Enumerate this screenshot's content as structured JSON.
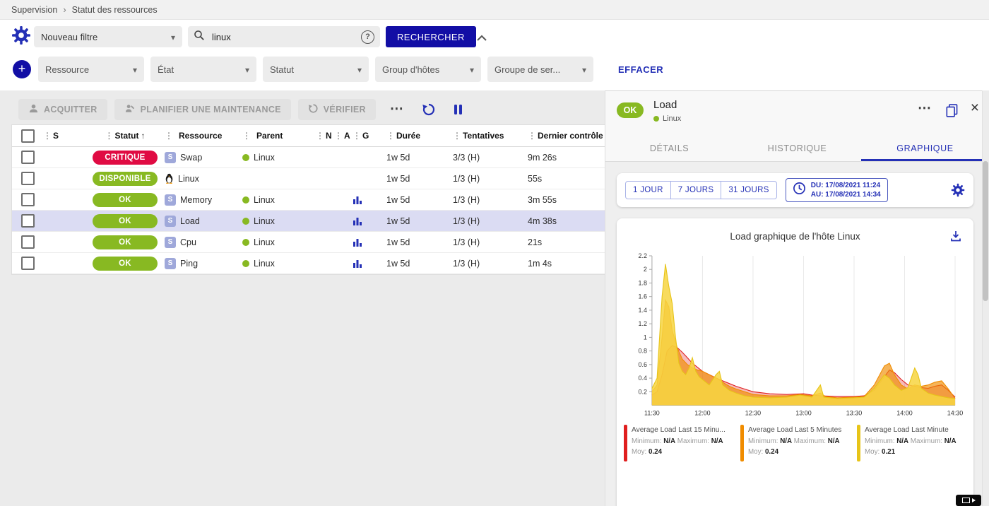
{
  "colors": {
    "primary": "#120ea5",
    "accent": "#2430b6",
    "critical": "#e00b43",
    "success": "#88b922",
    "selected_row": "#dbdcf3"
  },
  "breadcrumb": {
    "items": [
      "Supervision",
      "Statut des ressources"
    ]
  },
  "filters": {
    "saved_filter_value": "Nouveau filtre",
    "search_value": "linux",
    "search_button_label": "RECHERCHER",
    "criteria": [
      "Ressource",
      "État",
      "Statut",
      "Group d'hôtes",
      "Groupe de ser..."
    ],
    "clear_label": "EFFACER"
  },
  "toolbar": {
    "acknowledge_label": "ACQUITTER",
    "maintenance_label": "PLANIFIER UNE MAINTENANCE",
    "check_label": "VÉRIFIER"
  },
  "table": {
    "service_icon_glyph": "S",
    "columns": [
      {
        "key": "s",
        "label": "S"
      },
      {
        "key": "statut",
        "label": "Statut",
        "sorted": "asc"
      },
      {
        "key": "ressource",
        "label": "Ressource"
      },
      {
        "key": "parent",
        "label": "Parent"
      },
      {
        "key": "n",
        "label": "N"
      },
      {
        "key": "a",
        "label": "A"
      },
      {
        "key": "g",
        "label": "G"
      },
      {
        "key": "duree",
        "label": "Durée"
      },
      {
        "key": "tentatives",
        "label": "Tentatives"
      },
      {
        "key": "dernier-controle",
        "label": "Dernier contrôle"
      }
    ],
    "rows": [
      {
        "status": "CRITIQUE",
        "kind": "critical",
        "type": "service",
        "resource": "Swap",
        "parent": "Linux",
        "graph": false,
        "duration": "1w 5d",
        "tries": "3/3 (H)",
        "last_check": "9m 26s",
        "selected": false
      },
      {
        "status": "DISPONIBLE",
        "kind": "success",
        "type": "host",
        "resource": "Linux",
        "parent": "",
        "graph": false,
        "duration": "1w 5d",
        "tries": "1/3 (H)",
        "last_check": "55s",
        "selected": false
      },
      {
        "status": "OK",
        "kind": "success",
        "type": "service",
        "resource": "Memory",
        "parent": "Linux",
        "graph": true,
        "duration": "1w 5d",
        "tries": "1/3 (H)",
        "last_check": "3m 55s",
        "selected": false
      },
      {
        "status": "OK",
        "kind": "success",
        "type": "service",
        "resource": "Load",
        "parent": "Linux",
        "graph": true,
        "duration": "1w 5d",
        "tries": "1/3 (H)",
        "last_check": "4m 38s",
        "selected": true
      },
      {
        "status": "OK",
        "kind": "success",
        "type": "service",
        "resource": "Cpu",
        "parent": "Linux",
        "graph": true,
        "duration": "1w 5d",
        "tries": "1/3 (H)",
        "last_check": "21s",
        "selected": false
      },
      {
        "status": "OK",
        "kind": "success",
        "type": "service",
        "resource": "Ping",
        "parent": "Linux",
        "graph": true,
        "duration": "1w 5d",
        "tries": "1/3 (H)",
        "last_check": "1m 4s",
        "selected": false
      }
    ]
  },
  "panel": {
    "status": "OK",
    "title": "Load",
    "host": "Linux",
    "tabs": [
      {
        "key": "details",
        "label": "DÉTAILS",
        "active": false
      },
      {
        "key": "historique",
        "label": "HISTORIQUE",
        "active": false
      },
      {
        "key": "graphique",
        "label": "GRAPHIQUE",
        "active": true
      }
    ],
    "time_ranges": [
      "1 JOUR",
      "7 JOURS",
      "31 JOURS"
    ],
    "period_from": "DU: 17/08/2021 11:24",
    "period_to": "AU: 17/08/2021 14:34"
  },
  "chart_data": {
    "type": "area",
    "title": "Load graphique de l'hôte Linux",
    "xlabel": "",
    "ylabel": "",
    "x_unit": "minutes after 11:30",
    "xlim": [
      0,
      180
    ],
    "ylim": [
      0,
      2.2
    ],
    "grid": "vertical",
    "legend_position": "bottom",
    "xticks": [
      {
        "v": 0,
        "label": "11:30"
      },
      {
        "v": 30,
        "label": "12:00"
      },
      {
        "v": 60,
        "label": "12:30"
      },
      {
        "v": 90,
        "label": "13:00"
      },
      {
        "v": 120,
        "label": "13:30"
      },
      {
        "v": 150,
        "label": "14:00"
      },
      {
        "v": 180,
        "label": "14:30"
      }
    ],
    "yticks": [
      {
        "v": 0.2,
        "label": "0.2"
      },
      {
        "v": 0.4,
        "label": "0.4"
      },
      {
        "v": 0.6,
        "label": "0.6"
      },
      {
        "v": 0.8,
        "label": "0.8"
      },
      {
        "v": 1,
        "label": "1"
      },
      {
        "v": 1.2,
        "label": "1.2"
      },
      {
        "v": 1.4,
        "label": "1.4"
      },
      {
        "v": 1.6,
        "label": "1.6"
      },
      {
        "v": 1.8,
        "label": "1.8"
      },
      {
        "v": 2,
        "label": "2"
      },
      {
        "v": 2.2,
        "label": "2.2"
      }
    ],
    "legend_labels": {
      "min": "Minimum:",
      "max": "Maximum:",
      "avg": "Moy:"
    },
    "series": [
      {
        "label": "Average Load Last 15 Minu...",
        "min": "N/A",
        "max": "N/A",
        "avg": "0.24",
        "color": "#e01f1f",
        "fill": "rgba(224,31,31,0.30)",
        "points": [
          [
            0,
            0.15
          ],
          [
            3,
            0.2
          ],
          [
            6,
            0.45
          ],
          [
            9,
            0.8
          ],
          [
            12,
            0.88
          ],
          [
            15,
            0.85
          ],
          [
            18,
            0.78
          ],
          [
            21,
            0.7
          ],
          [
            24,
            0.62
          ],
          [
            27,
            0.56
          ],
          [
            30,
            0.5
          ],
          [
            35,
            0.44
          ],
          [
            40,
            0.38
          ],
          [
            45,
            0.33
          ],
          [
            50,
            0.28
          ],
          [
            55,
            0.24
          ],
          [
            60,
            0.2
          ],
          [
            70,
            0.17
          ],
          [
            80,
            0.16
          ],
          [
            90,
            0.17
          ],
          [
            95,
            0.15
          ],
          [
            100,
            0.14
          ],
          [
            110,
            0.13
          ],
          [
            120,
            0.13
          ],
          [
            126,
            0.14
          ],
          [
            132,
            0.22
          ],
          [
            138,
            0.42
          ],
          [
            141,
            0.52
          ],
          [
            144,
            0.48
          ],
          [
            148,
            0.38
          ],
          [
            152,
            0.3
          ],
          [
            156,
            0.28
          ],
          [
            160,
            0.26
          ],
          [
            164,
            0.25
          ],
          [
            168,
            0.28
          ],
          [
            172,
            0.3
          ],
          [
            176,
            0.22
          ],
          [
            180,
            0.12
          ]
        ]
      },
      {
        "label": "Average Load Last 5 Minutes",
        "min": "N/A",
        "max": "N/A",
        "avg": "0.24",
        "color": "#f08c00",
        "fill": "rgba(240,140,0,0.65)",
        "points": [
          [
            0,
            0.2
          ],
          [
            3,
            0.3
          ],
          [
            6,
            1.0
          ],
          [
            8,
            1.55
          ],
          [
            10,
            1.45
          ],
          [
            12,
            1.1
          ],
          [
            15,
            0.85
          ],
          [
            18,
            0.68
          ],
          [
            21,
            0.6
          ],
          [
            24,
            0.55
          ],
          [
            27,
            0.52
          ],
          [
            30,
            0.5
          ],
          [
            34,
            0.45
          ],
          [
            38,
            0.4
          ],
          [
            42,
            0.34
          ],
          [
            46,
            0.28
          ],
          [
            50,
            0.24
          ],
          [
            55,
            0.2
          ],
          [
            60,
            0.16
          ],
          [
            70,
            0.14
          ],
          [
            80,
            0.14
          ],
          [
            88,
            0.16
          ],
          [
            95,
            0.14
          ],
          [
            100,
            0.18
          ],
          [
            103,
            0.13
          ],
          [
            110,
            0.11
          ],
          [
            120,
            0.12
          ],
          [
            126,
            0.13
          ],
          [
            132,
            0.3
          ],
          [
            138,
            0.58
          ],
          [
            141,
            0.62
          ],
          [
            144,
            0.45
          ],
          [
            148,
            0.3
          ],
          [
            152,
            0.24
          ],
          [
            156,
            0.3
          ],
          [
            160,
            0.28
          ],
          [
            164,
            0.3
          ],
          [
            168,
            0.34
          ],
          [
            172,
            0.36
          ],
          [
            176,
            0.24
          ],
          [
            180,
            0.1
          ]
        ]
      },
      {
        "label": "Average Load Last Minute",
        "min": "N/A",
        "max": "N/A",
        "avg": "0.21",
        "color": "#e7c418",
        "fill": "rgba(247,213,65,0.85)",
        "points": [
          [
            0,
            0.25
          ],
          [
            3,
            0.4
          ],
          [
            6,
            1.6
          ],
          [
            8,
            2.08
          ],
          [
            10,
            1.75
          ],
          [
            12,
            1.5
          ],
          [
            14,
            1.0
          ],
          [
            16,
            0.62
          ],
          [
            18,
            0.5
          ],
          [
            20,
            0.45
          ],
          [
            22,
            0.55
          ],
          [
            24,
            0.7
          ],
          [
            26,
            0.5
          ],
          [
            28,
            0.42
          ],
          [
            30,
            0.38
          ],
          [
            34,
            0.3
          ],
          [
            38,
            0.45
          ],
          [
            40,
            0.5
          ],
          [
            42,
            0.3
          ],
          [
            46,
            0.22
          ],
          [
            50,
            0.18
          ],
          [
            55,
            0.14
          ],
          [
            60,
            0.12
          ],
          [
            70,
            0.11
          ],
          [
            80,
            0.12
          ],
          [
            88,
            0.15
          ],
          [
            95,
            0.12
          ],
          [
            100,
            0.3
          ],
          [
            102,
            0.12
          ],
          [
            110,
            0.1
          ],
          [
            120,
            0.11
          ],
          [
            126,
            0.12
          ],
          [
            132,
            0.25
          ],
          [
            138,
            0.45
          ],
          [
            141,
            0.4
          ],
          [
            144,
            0.3
          ],
          [
            148,
            0.22
          ],
          [
            152,
            0.26
          ],
          [
            156,
            0.55
          ],
          [
            158,
            0.45
          ],
          [
            160,
            0.25
          ],
          [
            164,
            0.18
          ],
          [
            168,
            0.15
          ],
          [
            172,
            0.13
          ],
          [
            176,
            0.11
          ],
          [
            180,
            0.1
          ]
        ]
      }
    ]
  }
}
